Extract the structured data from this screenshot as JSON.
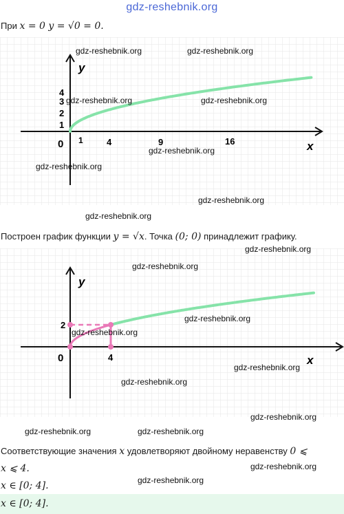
{
  "site_title": "gdz-reshebnik.org",
  "line1": {
    "prefix": "При",
    "math": "x = 0 y = √0 = 0."
  },
  "graph1": {
    "y_label": "y",
    "x_label": "x",
    "origin": "0",
    "y_ticks": [
      "4",
      "3",
      "2",
      "1"
    ],
    "x_ticks": [
      "1",
      "4",
      "9",
      "16"
    ],
    "curve_color": "#86e3a9"
  },
  "line2": {
    "prefix": "Построен график функции",
    "math": "y = √x",
    "suffix": ". Точка",
    "point": "(0;  0)",
    "tail": "принадлежит графику."
  },
  "graph2": {
    "y_label": "y",
    "x_label": "x",
    "origin": "0",
    "y_tick": "2",
    "x_tick": "4",
    "curve_color": "#86e3a9",
    "highlight_color": "#e979b7"
  },
  "line3": {
    "prefix": "Соответствующие значения",
    "math_var": "x",
    "middle": "удовлетворяют двойному неравенству",
    "math_a": "0 ⩽"
  },
  "line4": {
    "math": "x ⩽ 4."
  },
  "line5": {
    "math": "x ∈ [0;  4]."
  },
  "answer": {
    "math": "x ∈ [0;  4]."
  },
  "watermark": "gdz-reshebnik.org"
}
